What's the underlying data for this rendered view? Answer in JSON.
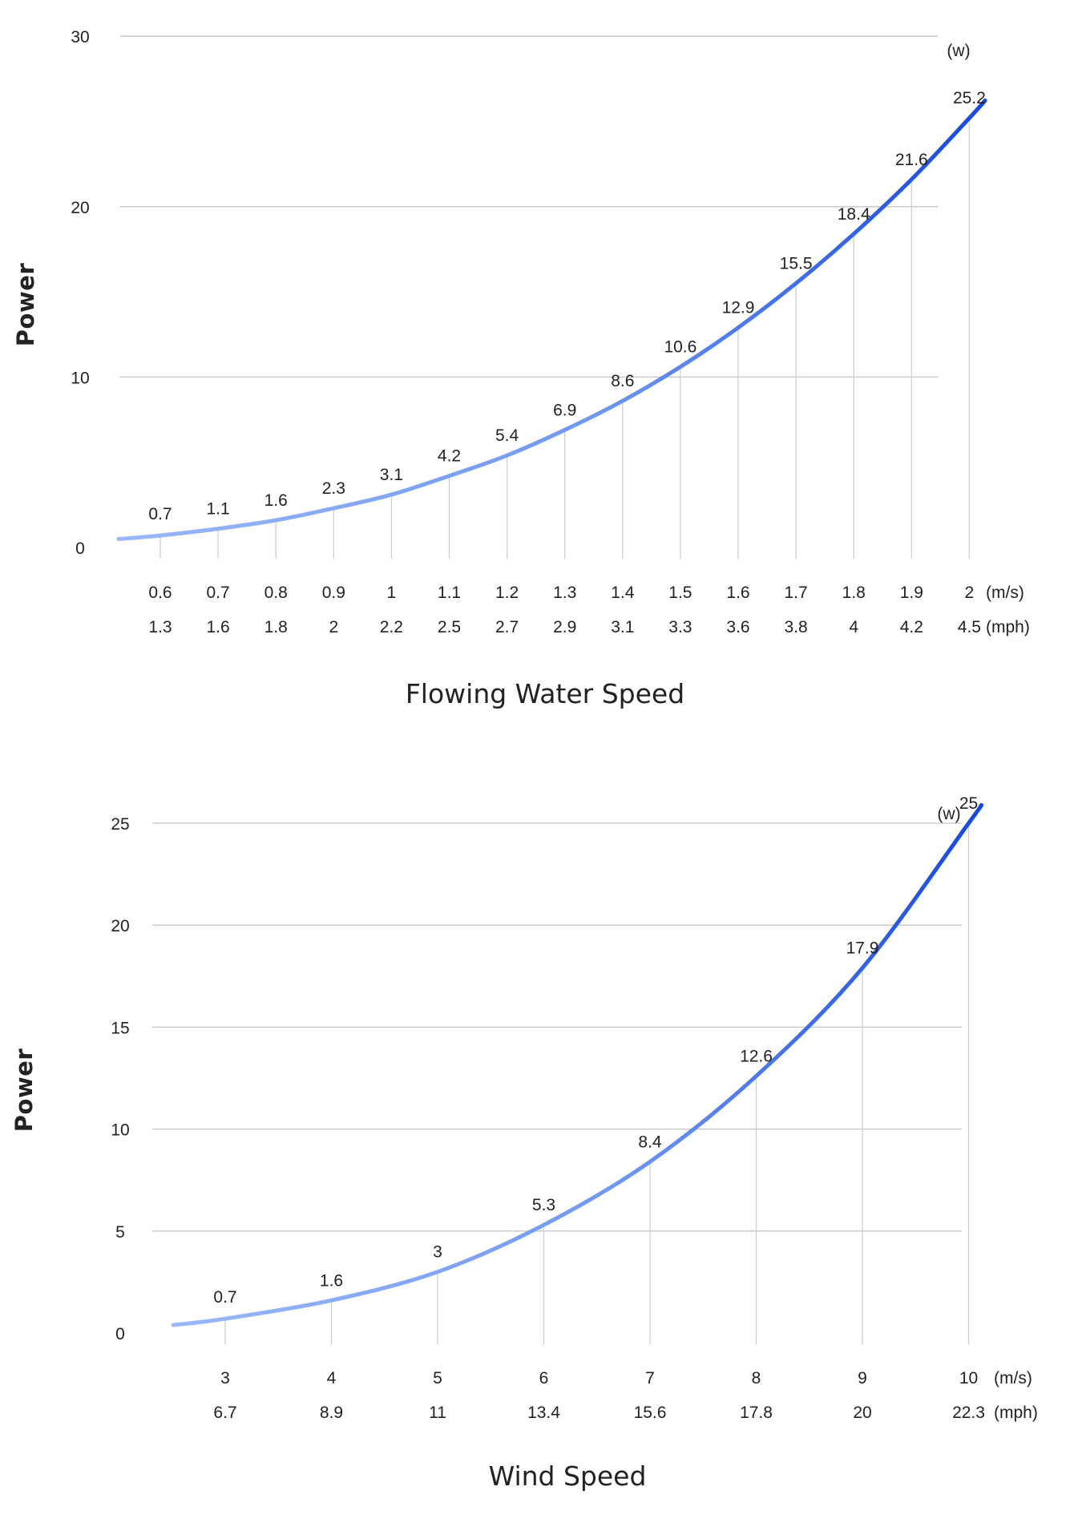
{
  "chart_data": [
    {
      "type": "line",
      "title": "",
      "xlabel": "Flowing Water Speed",
      "ylabel": "Power",
      "y_unit": "(w)",
      "x_unit_primary": "(m/s)",
      "x_unit_secondary": "(mph)",
      "ylim": [
        0,
        30
      ],
      "yticks": [
        0,
        10,
        20,
        30
      ],
      "grid": true,
      "x": [
        0.6,
        0.7,
        0.8,
        0.9,
        1,
        1.1,
        1.2,
        1.3,
        1.4,
        1.5,
        1.6,
        1.7,
        1.8,
        1.9,
        2
      ],
      "x_tick_labels": [
        "0.6",
        "0.7",
        "0.8",
        "0.9",
        "1",
        "1.1",
        "1.2",
        "1.3",
        "1.4",
        "1.5",
        "1.6",
        "1.7",
        "1.8",
        "1.9",
        "2"
      ],
      "x_mph_labels": [
        "1.3",
        "1.6",
        "1.8",
        "2",
        "2.2",
        "2.5",
        "2.7",
        "2.9",
        "3.1",
        "3.3",
        "3.6",
        "3.8",
        "4",
        "4.2",
        "4.5"
      ],
      "series": [
        {
          "values": [
            0.7,
            1.1,
            1.6,
            2.3,
            3.1,
            4.2,
            5.4,
            6.9,
            8.6,
            10.6,
            12.9,
            15.5,
            18.4,
            21.6,
            25.2
          ],
          "labels": [
            "0.7",
            "1.1",
            "1.6",
            "2.3",
            "3.1",
            "4.2",
            "5.4",
            "6.9",
            "8.6",
            "10.6",
            "12.9",
            "15.5",
            "18.4",
            "21.6",
            "25.2"
          ]
        }
      ],
      "colors": {
        "start": "#9ab8f8",
        "end": "#1447e6"
      }
    },
    {
      "type": "line",
      "title": "",
      "xlabel": "Wind Speed",
      "ylabel": "Power",
      "y_unit": "(w)",
      "x_unit_primary": "(m/s)",
      "x_unit_secondary": "(mph)",
      "ylim": [
        0,
        25
      ],
      "yticks": [
        0,
        5,
        10,
        15,
        20,
        25
      ],
      "grid": true,
      "x": [
        3,
        4,
        5,
        6,
        7,
        8,
        9,
        10
      ],
      "x_tick_labels": [
        "3",
        "4",
        "5",
        "6",
        "7",
        "8",
        "9",
        "10"
      ],
      "x_mph_labels": [
        "6.7",
        "8.9",
        "11",
        "13.4",
        "15.6",
        "17.8",
        "20",
        "22.3"
      ],
      "series": [
        {
          "values": [
            0.7,
            1.6,
            3,
            5.3,
            8.4,
            12.6,
            17.9,
            25
          ],
          "labels": [
            "0.7",
            "1.6",
            "3",
            "5.3",
            "8.4",
            "12.6",
            "17.9",
            "25"
          ]
        }
      ],
      "colors": {
        "start": "#9ab8f8",
        "end": "#1447e6"
      }
    }
  ]
}
